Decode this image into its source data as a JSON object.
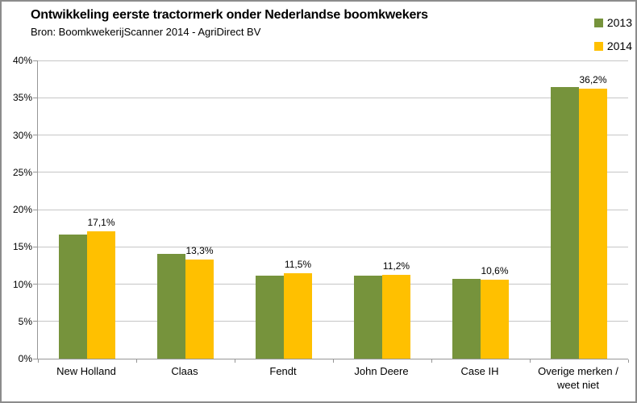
{
  "header": {
    "title": "Ontwikkeling eerste tractormerk onder Nederlandse boomkwekers",
    "source": "Bron: BoomkwekerijScanner 2014 - AgriDirect BV"
  },
  "legend": {
    "items": [
      {
        "label": "2013",
        "color": "#76933C"
      },
      {
        "label": "2014",
        "color": "#FFC000"
      }
    ]
  },
  "chart_data": {
    "type": "bar",
    "title": "Ontwikkeling eerste tractormerk onder Nederlandse boomkwekers",
    "subtitle": "Bron: BoomkwekerijScanner 2014 - AgriDirect BV",
    "categories": [
      "New Holland",
      "Claas",
      "Fendt",
      "John Deere",
      "Case IH",
      "Overige merken / weet niet"
    ],
    "series": [
      {
        "name": "2013",
        "color": "#76933C",
        "values": [
          16.7,
          14.1,
          11.1,
          11.1,
          10.7,
          36.4
        ],
        "data_labels": null
      },
      {
        "name": "2014",
        "color": "#FFC000",
        "values": [
          17.1,
          13.3,
          11.5,
          11.2,
          10.6,
          36.2
        ],
        "data_labels": [
          "17,1%",
          "13,3%",
          "11,5%",
          "11,2%",
          "10,6%",
          "36,2%"
        ]
      }
    ],
    "xlabel": "",
    "ylabel": "",
    "ylim": [
      0,
      40
    ],
    "ytick_step": 5,
    "ytick_labels": [
      "0%",
      "5%",
      "10%",
      "15%",
      "20%",
      "25%",
      "30%",
      "35%",
      "40%"
    ],
    "grid": true,
    "legend_position": "top-right",
    "colors": {
      "gridline": "#C6C6C6",
      "axis": "#969696",
      "text": "#000000",
      "background": "#FFFFFF",
      "border": "#8C8C8C"
    }
  }
}
